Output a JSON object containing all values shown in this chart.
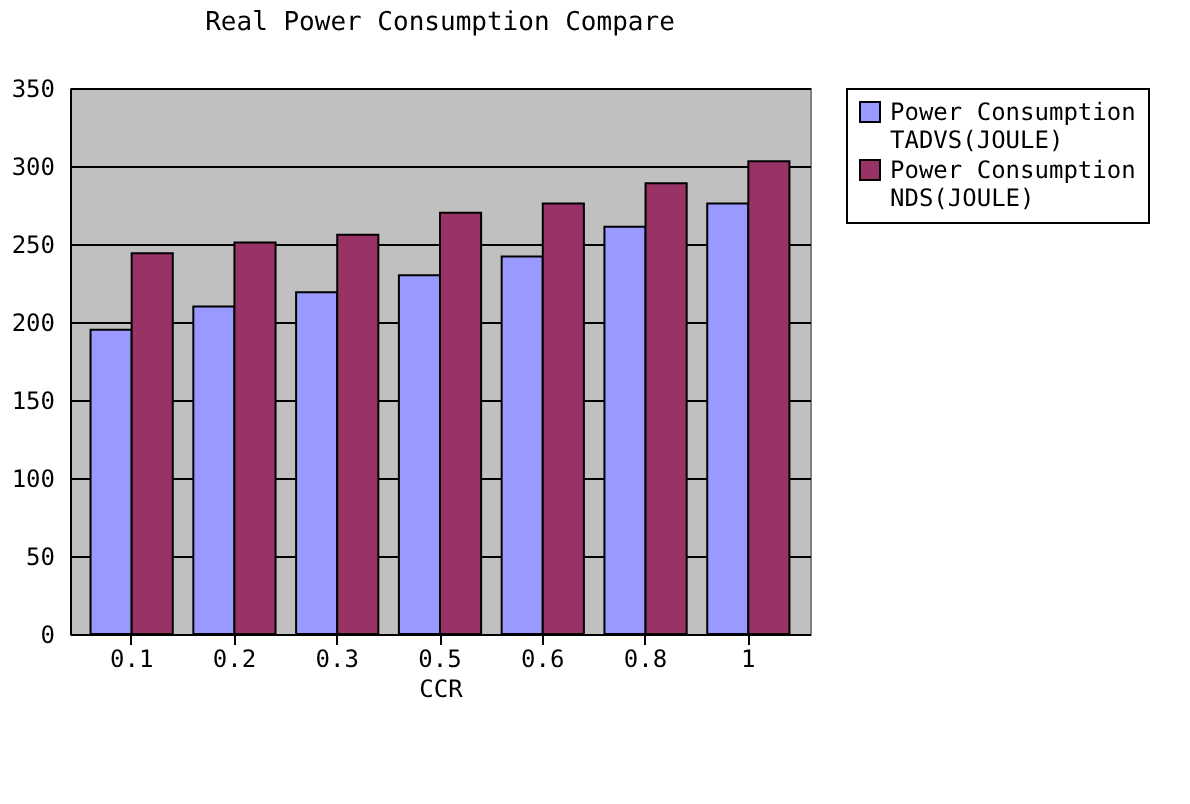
{
  "chart_data": {
    "type": "bar",
    "title": "Real Power Consumption Compare",
    "xlabel": "CCR",
    "categories": [
      "0.1",
      "0.2",
      "0.3",
      "0.5",
      "0.6",
      "0.8",
      "1"
    ],
    "series": [
      {
        "name": "Power Consumption TADVS(JOULE)",
        "color": "#9999ff",
        "values": [
          195,
          210,
          219,
          230,
          242,
          261,
          276
        ]
      },
      {
        "name": "Power Consumption NDS(JOULE)",
        "color": "#993366",
        "values": [
          244,
          251,
          256,
          270,
          276,
          289,
          303
        ]
      }
    ],
    "ylim": [
      0,
      350
    ],
    "yticks": [
      0,
      50,
      100,
      150,
      200,
      250,
      300,
      350
    ],
    "grid": "y",
    "legend": "right"
  }
}
